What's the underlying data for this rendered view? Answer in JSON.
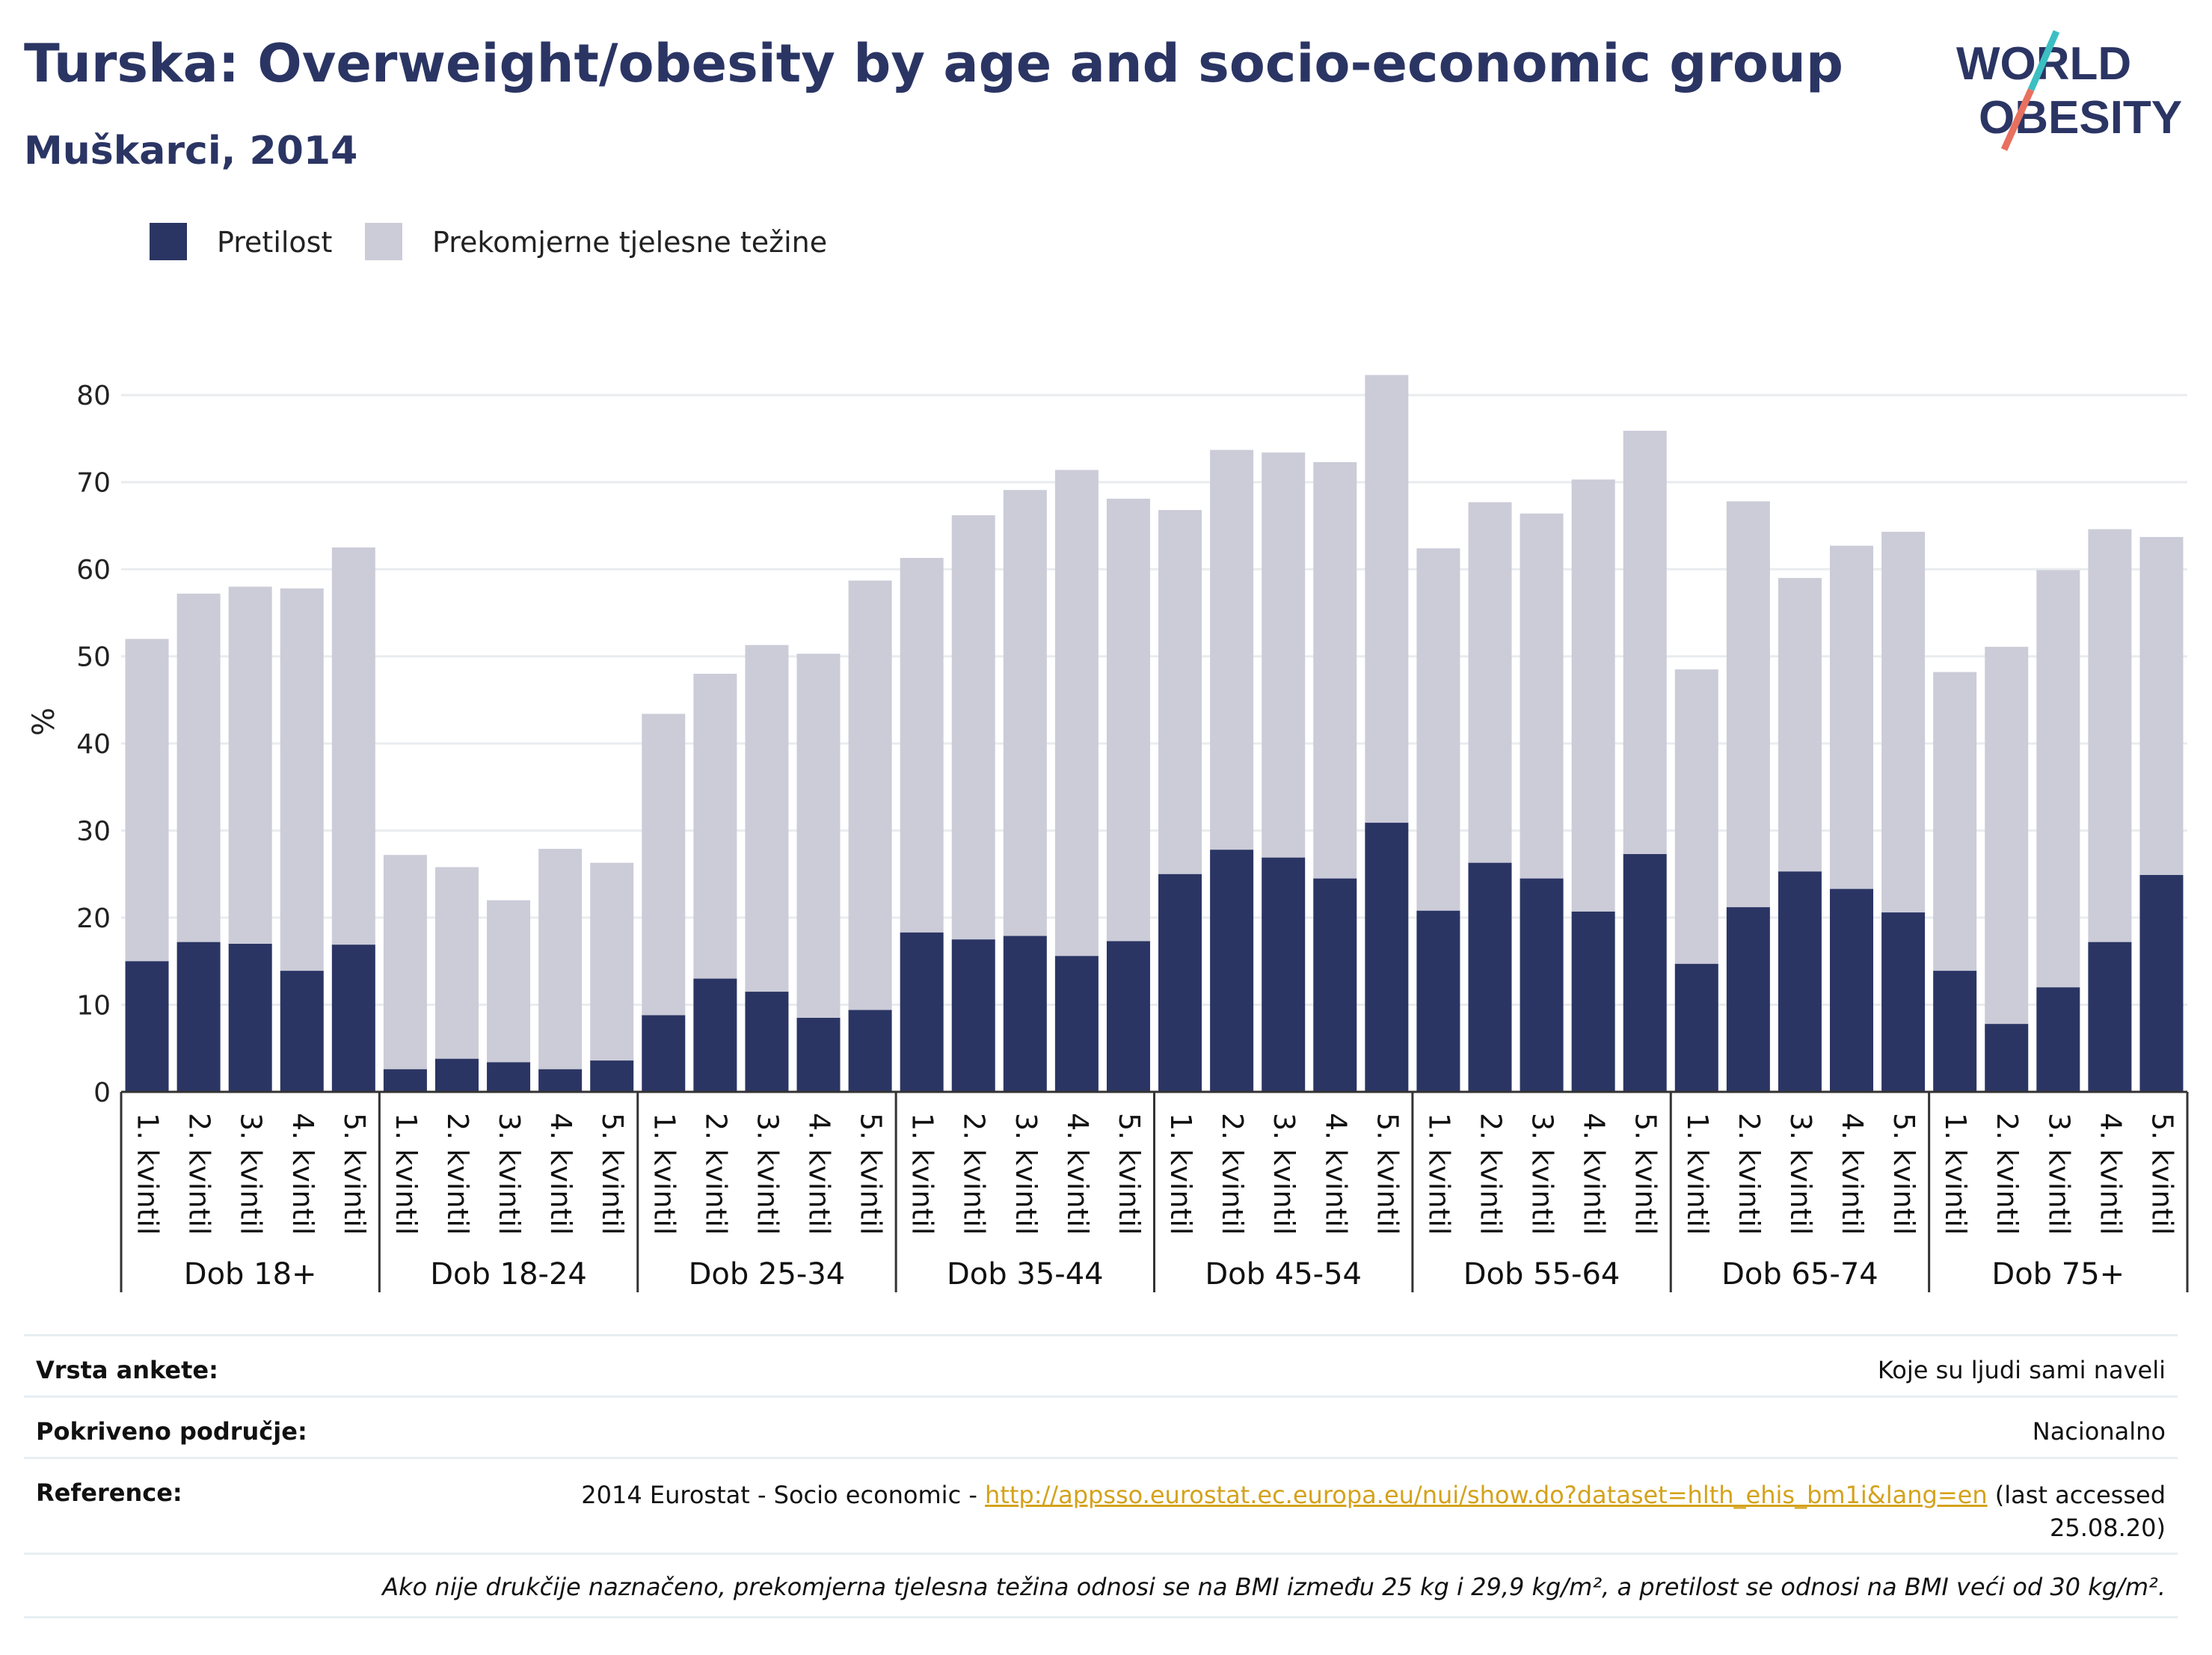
{
  "title": "Turska: Overweight/obesity by age and socio-economic group",
  "subtitle": "Muškarci, 2014",
  "logo": {
    "line1": "WORLD",
    "line2": "OBESITY"
  },
  "legend": [
    {
      "label": "Pretilost",
      "color": "#2b3564"
    },
    {
      "label": "Prekomjerne tjelesne težine",
      "color": "#cbccd8"
    }
  ],
  "colors": {
    "obesity": "#2b3564",
    "overweight": "#cbccd8",
    "accent_teal": "#3bbfc2",
    "accent_coral": "#e8705f"
  },
  "chart_data": {
    "type": "bar",
    "stacked": true,
    "ylabel": "%",
    "xlabel": "",
    "ylim": [
      0,
      85
    ],
    "yticks": [
      0,
      10,
      20,
      30,
      40,
      50,
      60,
      70,
      80
    ],
    "grid": true,
    "legend_position": "top-left",
    "groups": [
      "Dob 18+",
      "Dob 18-24",
      "Dob 25-34",
      "Dob 35-44",
      "Dob 45-54",
      "Dob 55-64",
      "Dob 65-74",
      "Dob 75+"
    ],
    "categories": [
      "1. kvintil",
      "2. kvintil",
      "3. kvintil",
      "4. kvintil",
      "5. kvintil"
    ],
    "series": [
      {
        "name": "Pretilost",
        "values": [
          [
            15.0,
            17.2,
            17.0,
            13.9,
            16.9
          ],
          [
            2.6,
            3.8,
            3.4,
            2.6,
            3.6
          ],
          [
            8.8,
            13.0,
            11.5,
            8.5,
            9.4
          ],
          [
            18.3,
            17.5,
            17.9,
            15.6,
            17.3
          ],
          [
            25.0,
            27.8,
            26.9,
            24.5,
            30.9
          ],
          [
            20.8,
            26.3,
            24.5,
            20.7,
            27.3
          ],
          [
            14.7,
            21.2,
            25.3,
            23.3,
            20.6
          ],
          [
            13.9,
            7.8,
            12.0,
            17.2,
            24.9
          ]
        ]
      },
      {
        "name": "Prekomjerne tjelesne težine",
        "values": [
          [
            37.0,
            40.0,
            41.0,
            43.9,
            45.6
          ],
          [
            24.6,
            22.0,
            18.6,
            25.3,
            22.7
          ],
          [
            34.6,
            35.0,
            39.8,
            41.8,
            49.3
          ],
          [
            43.0,
            48.7,
            51.2,
            55.8,
            50.8
          ],
          [
            41.8,
            45.9,
            46.5,
            47.8,
            51.4
          ],
          [
            41.6,
            41.4,
            41.9,
            49.6,
            48.6
          ],
          [
            33.8,
            46.6,
            33.7,
            39.4,
            43.7
          ],
          [
            34.3,
            43.3,
            47.9,
            47.4,
            38.8
          ]
        ]
      }
    ]
  },
  "info": {
    "survey_type_label": "Vrsta ankete:",
    "survey_type_value": "Koje su ljudi sami naveli",
    "coverage_label": "Pokriveno područje:",
    "coverage_value": "Nacionalno",
    "reference_label": "Reference:",
    "reference_prefix": "2014 Eurostat - Socio economic - ",
    "reference_link": "http://appsso.eurostat.ec.europa.eu/nui/show.do?dataset=hlth_ehis_bm1i&lang=en",
    "reference_suffix": " (last accessed",
    "reference_date": "25.08.20)",
    "note": "Ako nije drukčije naznačeno, prekomjerna tjelesna težina odnosi se na BMI između 25 kg i 29,9 kg/m², a pretilost se odnosi na BMI veći od 30 kg/m²."
  }
}
